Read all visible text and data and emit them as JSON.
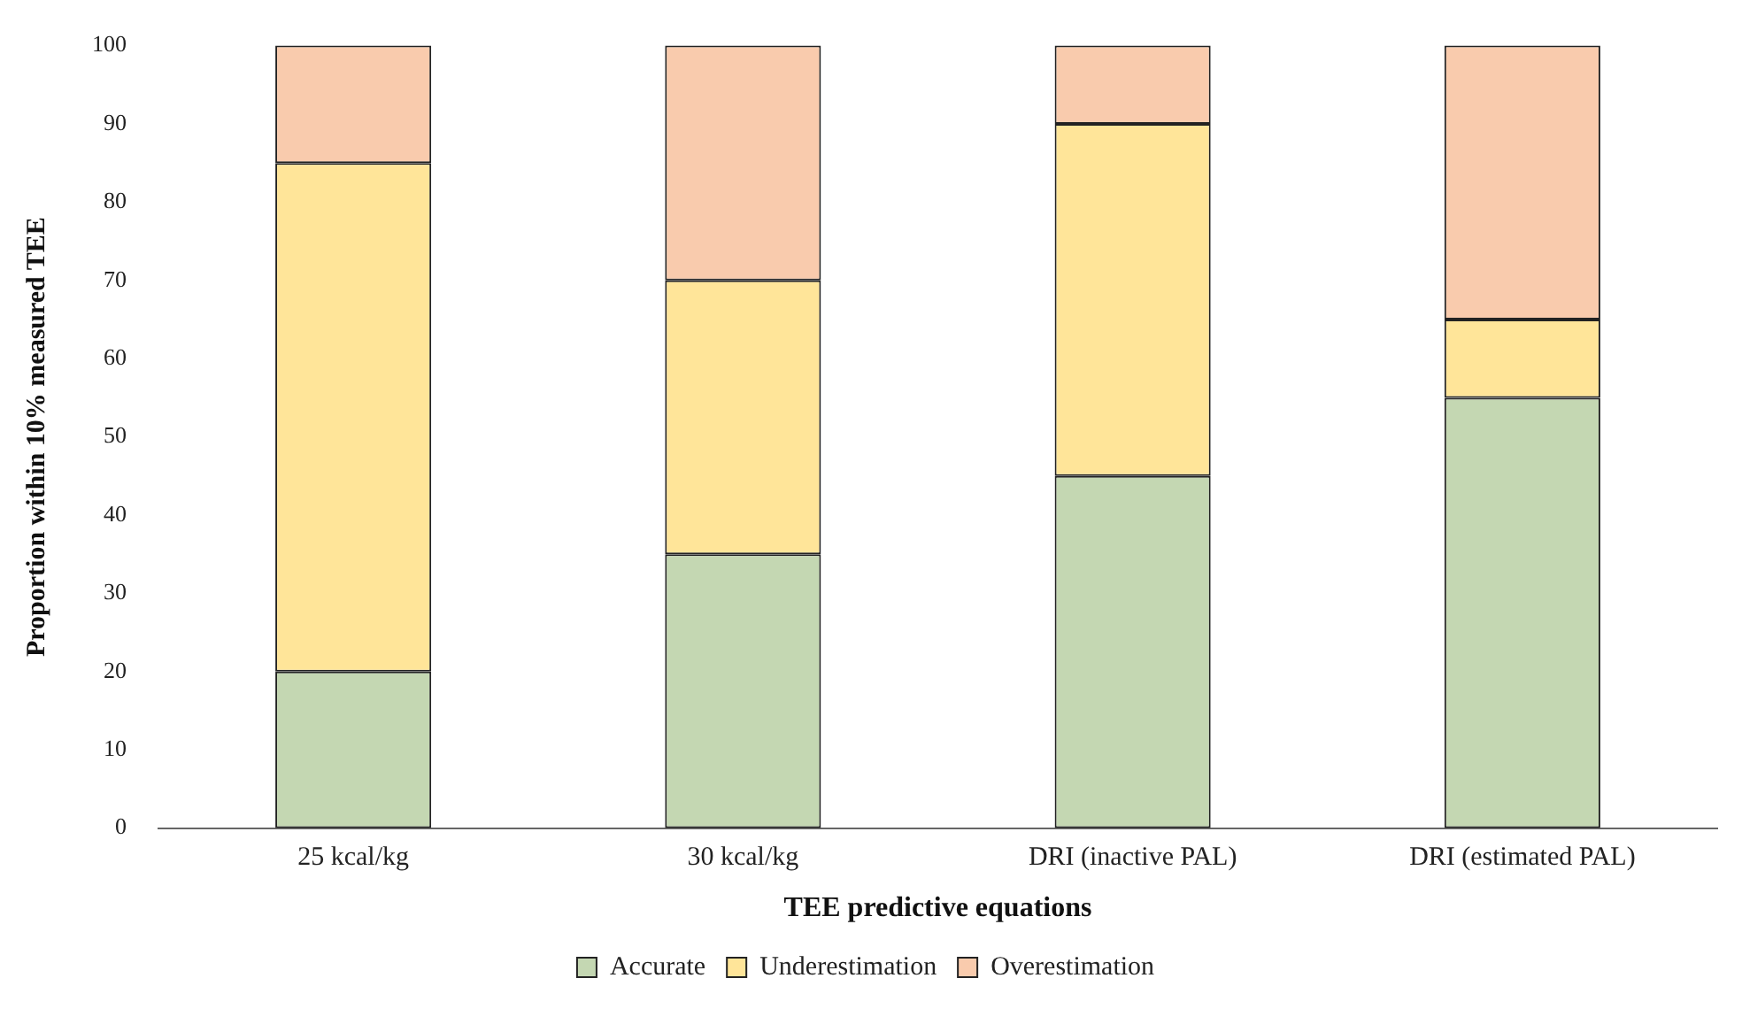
{
  "chart_data": {
    "type": "bar",
    "stacked": true,
    "xlabel": "TEE predictive equations",
    "ylabel": "Proportion within 10% measured TEE",
    "categories": [
      "25 kcal/kg",
      "30 kcal/kg",
      "DRI (inactive PAL)",
      "DRI (estimated PAL)"
    ],
    "series": [
      {
        "name": "Accurate",
        "color": "#c4d7b2",
        "values": [
          20,
          35,
          45,
          55
        ]
      },
      {
        "name": "Underestimation",
        "color": "#ffe599",
        "values": [
          65,
          35,
          45,
          10
        ]
      },
      {
        "name": "Overestimation",
        "color": "#f9cbad",
        "values": [
          15,
          30,
          10,
          35
        ]
      }
    ],
    "ylim": [
      0,
      100
    ],
    "yticks": [
      0,
      10,
      20,
      30,
      40,
      50,
      60,
      70,
      80,
      90,
      100
    ],
    "grid": false,
    "legend": "bottom"
  }
}
